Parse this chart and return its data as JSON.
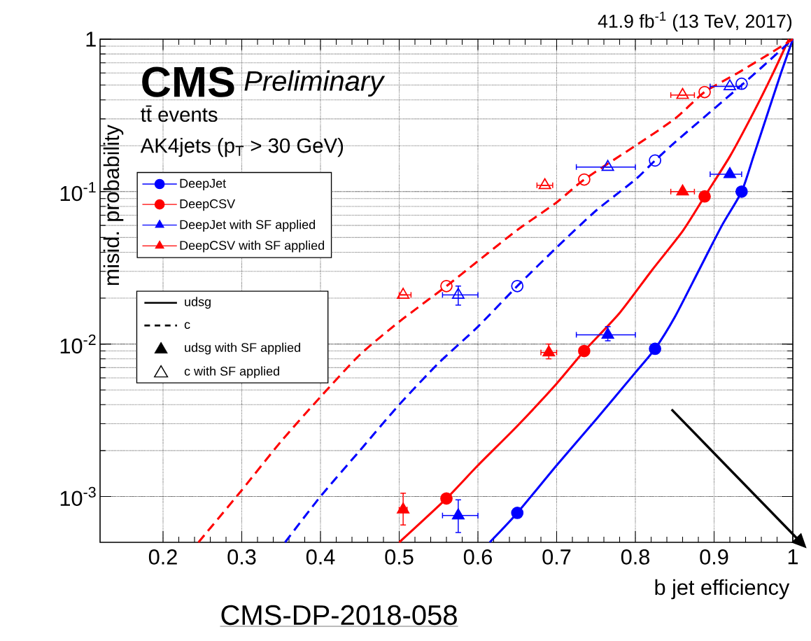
{
  "chart_data": {
    "type": "line",
    "xlabel": "b jet efficiency",
    "ylabel": "misid. probability",
    "xlim": [
      0.12,
      1.0
    ],
    "ylim": [
      0.0005,
      1.0
    ],
    "log": "y",
    "grid": true,
    "legend": "top left",
    "xticks": [
      0.2,
      0.3,
      0.4,
      0.5,
      0.6,
      0.7,
      0.8,
      0.9,
      1
    ],
    "yticks": [
      {
        "value": 0.001,
        "label": "10$^{-3}$"
      },
      {
        "value": 0.01,
        "label": "10$^{-2}$"
      },
      {
        "value": 0.1,
        "label": "10$^{-1}$"
      },
      {
        "value": 1,
        "label": "1"
      }
    ],
    "annotations": [
      "41.9 fb$^{-1}$ (13 TeV, 2017)",
      "CMS",
      "Preliminary",
      "tt̄ events",
      "AK4jets (p$_{T}$ > 30 GeV)",
      "udsg",
      "c",
      "udsg with SF applied",
      "c with SF applied",
      "CMS-DP-2018-058"
    ],
    "series": [
      {
        "color": "#0000ff",
        "line_style": "solid",
        "x": [
          0.615,
          0.65,
          0.7,
          0.75,
          0.8,
          0.825,
          0.85,
          0.88,
          0.91,
          0.935,
          0.95,
          0.97,
          0.985,
          1.0
        ],
        "values": [
          0.0005,
          0.00078,
          0.0016,
          0.0032,
          0.0065,
          0.0093,
          0.015,
          0.03,
          0.06,
          0.1,
          0.17,
          0.35,
          0.6,
          1.0
        ]
      },
      {
        "color": "#ff0000",
        "line_style": "solid",
        "x": [
          0.5,
          0.56,
          0.6,
          0.65,
          0.7,
          0.735,
          0.78,
          0.82,
          0.86,
          0.888,
          0.92,
          0.95,
          0.975,
          0.995
        ],
        "values": [
          0.0005,
          0.00097,
          0.0016,
          0.0029,
          0.0055,
          0.009,
          0.016,
          0.03,
          0.055,
          0.093,
          0.17,
          0.33,
          0.6,
          1.0
        ]
      },
      {
        "color": "#0000ff",
        "line_style": "dashed",
        "x": [
          0.355,
          0.4,
          0.45,
          0.5,
          0.55,
          0.6,
          0.65,
          0.7,
          0.75,
          0.8,
          0.825,
          0.85,
          0.9,
          0.935,
          0.96,
          1.0
        ],
        "values": [
          0.0005,
          0.001,
          0.002,
          0.004,
          0.0075,
          0.013,
          0.024,
          0.043,
          0.075,
          0.12,
          0.16,
          0.21,
          0.35,
          0.5,
          0.65,
          1.0
        ]
      },
      {
        "color": "#ff0000",
        "line_style": "dashed",
        "x": [
          0.245,
          0.3,
          0.35,
          0.4,
          0.45,
          0.5,
          0.56,
          0.6,
          0.65,
          0.7,
          0.735,
          0.8,
          0.85,
          0.888,
          0.93,
          0.97,
          1.0
        ],
        "values": [
          0.0005,
          0.0011,
          0.0023,
          0.0045,
          0.0085,
          0.014,
          0.024,
          0.035,
          0.056,
          0.085,
          0.12,
          0.2,
          0.3,
          0.45,
          0.6,
          0.8,
          1.0
        ]
      },
      {
        "type": "scatter",
        "name": "DeepJet",
        "color": "#0000ff",
        "marker": "circle",
        "x": [
          0.65,
          0.825,
          0.935
        ],
        "values": [
          0.00078,
          0.0093,
          0.1
        ]
      },
      {
        "type": "scatter",
        "name": "DeepCSV",
        "color": "#ff0000",
        "marker": "circle",
        "x": [
          0.56,
          0.735,
          0.888
        ],
        "values": [
          0.00097,
          0.009,
          0.093
        ]
      },
      {
        "type": "scatter",
        "name": "DeepJet with SF applied",
        "color": "#0000ff",
        "marker": "triangle",
        "x": [
          0.575,
          0.765,
          0.92
        ],
        "values": [
          0.00075,
          0.0115,
          0.13
        ],
        "xerrors": [
          [
            0.555,
            0.6
          ],
          [
            0.725,
            0.8
          ],
          [
            0.895,
            0.935
          ]
        ],
        "errors": [
          [
            0.00058,
            0.00095
          ],
          [
            0.0105,
            0.013
          ],
          null
        ]
      },
      {
        "type": "scatter",
        "name": "DeepCSV with SF applied",
        "color": "#ff0000",
        "marker": "triangle",
        "x": [
          0.505,
          0.69,
          0.86
        ],
        "values": [
          0.00082,
          0.0088,
          0.1
        ],
        "xerrors": [
          [
            0.5,
            0.51
          ],
          [
            0.68,
            0.7
          ],
          [
            0.845,
            0.875
          ]
        ],
        "errors": [
          [
            0.00065,
            0.00105
          ],
          [
            0.008,
            0.01
          ],
          null
        ]
      },
      {
        "type": "scatter",
        "color": "#0000ff",
        "marker": "circle",
        "x": [
          0.65,
          0.825,
          0.935
        ],
        "values": [
          0.024,
          0.16,
          0.51
        ]
      },
      {
        "type": "scatter",
        "color": "#ff0000",
        "marker": "circle",
        "x": [
          0.56,
          0.735,
          0.888
        ],
        "values": [
          0.024,
          0.12,
          0.45
        ]
      },
      {
        "type": "scatter",
        "color": "#0000ff",
        "marker": "triangle",
        "x": [
          0.575,
          0.765,
          0.92
        ],
        "values": [
          0.021,
          0.145,
          0.49
        ],
        "xerrors": [
          [
            0.555,
            0.6
          ],
          [
            0.725,
            0.8
          ],
          [
            0.895,
            0.935
          ]
        ],
        "errors": [
          [
            0.018,
            0.024
          ],
          null,
          null
        ]
      },
      {
        "type": "scatter",
        "color": "#ff0000",
        "marker": "triangle",
        "x": [
          0.505,
          0.685,
          0.86
        ],
        "values": [
          0.021,
          0.11,
          0.43
        ],
        "xerrors": [
          [
            0.5,
            0.515
          ],
          [
            0.675,
            0.695
          ],
          [
            0.845,
            0.875
          ]
        ],
        "errors": [
          null,
          null,
          null
        ]
      }
    ]
  }
}
